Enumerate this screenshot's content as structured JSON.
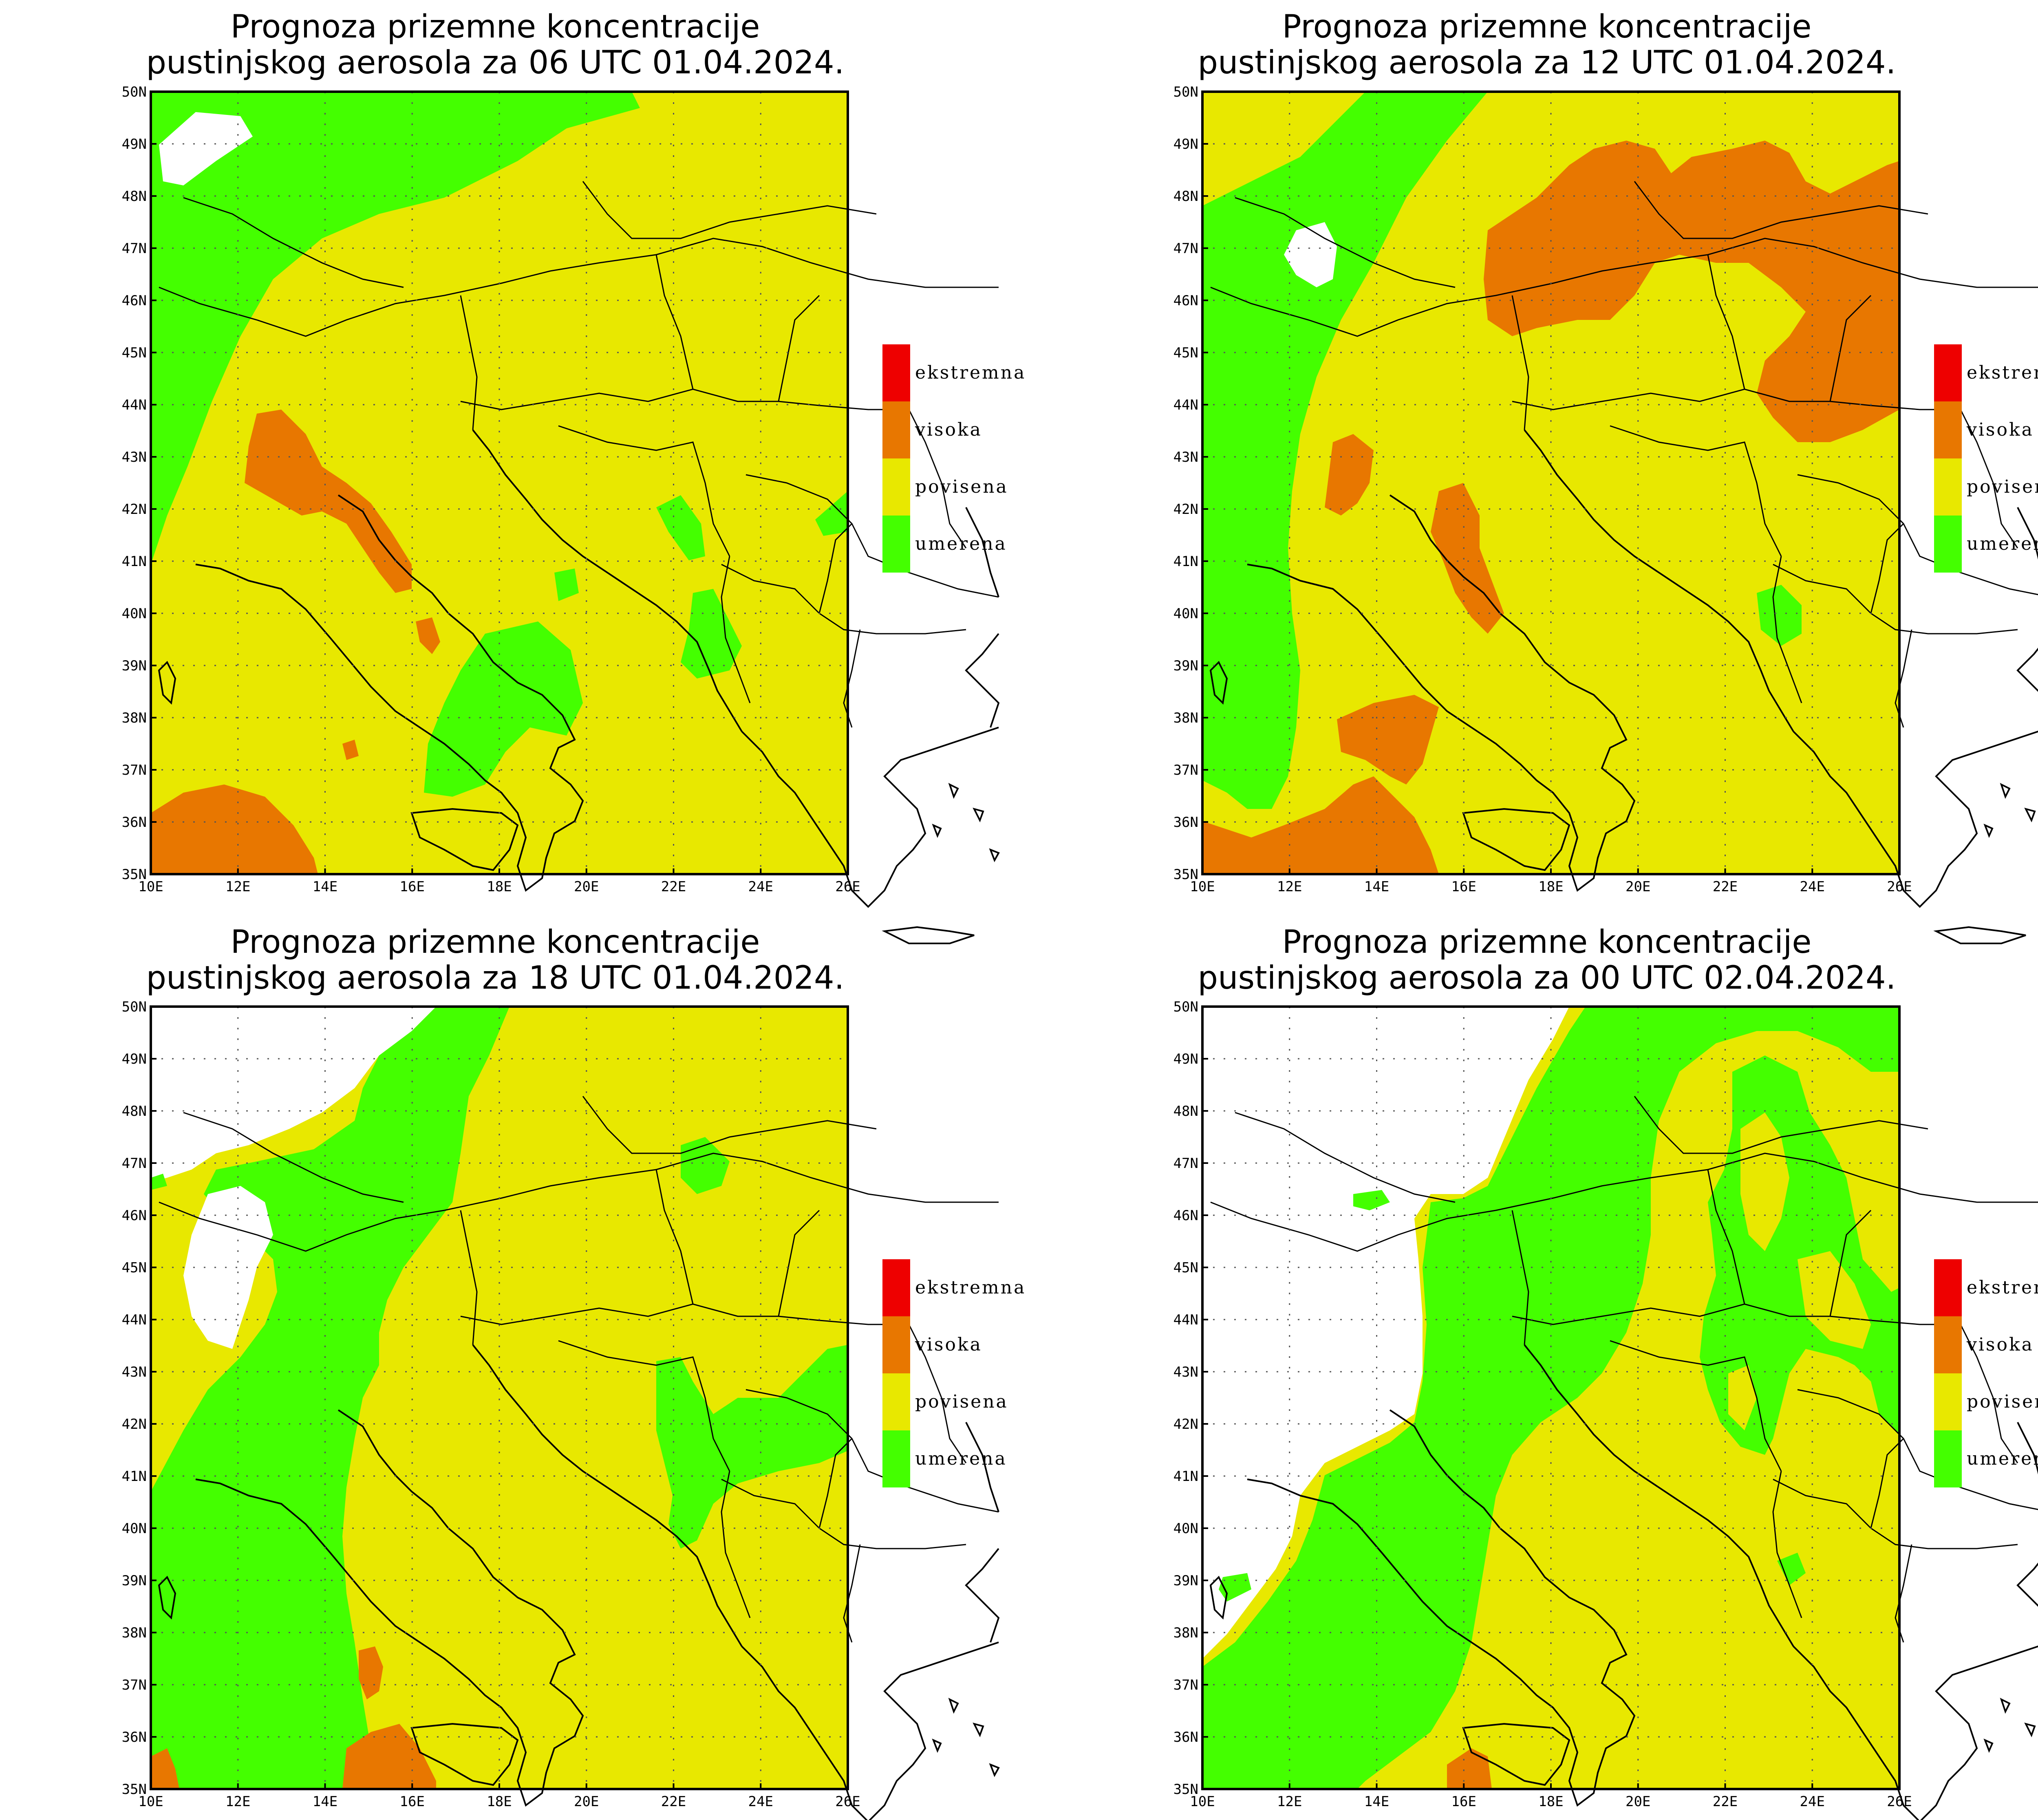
{
  "colors": {
    "ekstremna": "#ee0000",
    "visoka": "#e87700",
    "povisena": "#e8e800",
    "umerena": "#44ff00",
    "none": "#ffffff"
  },
  "legend": [
    {
      "label": "ekstremna",
      "color": "#ee0000"
    },
    {
      "label": "visoka",
      "color": "#e87700"
    },
    {
      "label": "povisena",
      "color": "#e8e800"
    },
    {
      "label": "umerena",
      "color": "#44ff00"
    }
  ],
  "lon_ticks": [
    "10E",
    "12E",
    "14E",
    "16E",
    "18E",
    "20E",
    "22E",
    "24E",
    "26E"
  ],
  "lat_ticks": [
    "35N",
    "36N",
    "37N",
    "38N",
    "39N",
    "40N",
    "41N",
    "42N",
    "43N",
    "44N",
    "45N",
    "46N",
    "47N",
    "48N",
    "49N",
    "50N"
  ],
  "panels": [
    {
      "title1": "Prognoza prizemne koncentracije",
      "title2": "pustinjskog aerosola za 06 UTC 01.04.2024."
    },
    {
      "title1": "Prognoza prizemne koncentracije",
      "title2": "pustinjskog aerosola za 12 UTC 01.04.2024."
    },
    {
      "title1": "Prognoza prizemne koncentracije",
      "title2": "pustinjskog aerosola za 18 UTC 01.04.2024."
    },
    {
      "title1": "Prognoza prizemne koncentracije",
      "title2": "pustinjskog aerosola za 00 UTC 02.04.2024."
    }
  ]
}
